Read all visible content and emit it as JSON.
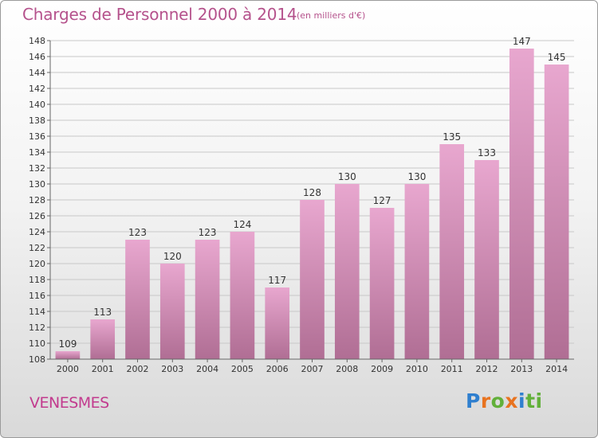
{
  "header": {
    "title": "Charges de Personnel 2000 à 2014",
    "subtitle": "(en milliers d'€)"
  },
  "footer": {
    "location": "VENESMES",
    "logo_letters": [
      "P",
      "r",
      "o",
      "x",
      "i",
      "ti"
    ],
    "logo_colors": [
      "#2f7fcf",
      "#e8731f",
      "#62b03a",
      "#e8731f",
      "#2f7fcf",
      "#62b03a"
    ]
  },
  "colors": {
    "bar_light": "#e8a7cf",
    "bar_dark": "#b06e94",
    "grid": "#c8c8c8",
    "text": "#333333",
    "accent": "#b5528c"
  },
  "chart_data": {
    "type": "bar",
    "title": "Charges de Personnel 2000 à 2014",
    "subtitle": "(en milliers d'€)",
    "categories": [
      "2000",
      "2001",
      "2002",
      "2003",
      "2004",
      "2005",
      "2006",
      "2007",
      "2008",
      "2009",
      "2010",
      "2011",
      "2012",
      "2013",
      "2014"
    ],
    "values": [
      109,
      113,
      123,
      120,
      123,
      124,
      117,
      128,
      130,
      127,
      130,
      135,
      133,
      147,
      145
    ],
    "ylim": [
      108,
      148
    ],
    "yticks": [
      108,
      110,
      112,
      114,
      116,
      118,
      120,
      122,
      124,
      126,
      128,
      130,
      132,
      134,
      136,
      138,
      140,
      142,
      144,
      146,
      148
    ],
    "grid": true,
    "data_labels": true
  }
}
